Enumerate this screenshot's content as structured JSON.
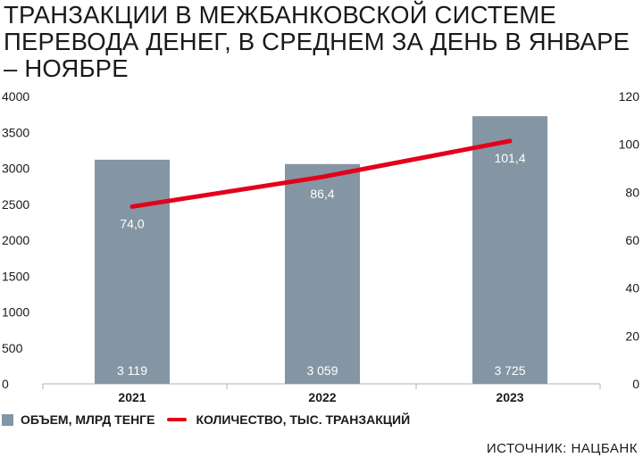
{
  "title_lines": [
    "ТРАНЗАКЦИИ В МЕЖБАНКОВСКОЙ СИСТЕМЕ",
    "ПЕРЕВОДА ДЕНЕГ, В СРЕДНЕМ ЗА ДЕНЬ В ЯНВАРЕ",
    "– НОЯБРЕ"
  ],
  "source": "ИСТОЧНИК: НАЦБАНК",
  "colors": {
    "bar": "#8496a4",
    "line": "#e3001b",
    "grid": "#b3b3b3"
  },
  "chart_data": {
    "type": "bar",
    "categories": [
      "2021",
      "2022",
      "2023"
    ],
    "series": [
      {
        "name": "ОБЪЕМ, МЛРД ТЕНГЕ",
        "type": "bar",
        "axis": "left",
        "values": [
          3119,
          3059,
          3725
        ],
        "labels": [
          "3 119",
          "3 059",
          "3 725"
        ]
      },
      {
        "name": "КОЛИЧЕСТВО, ТЫС. ТРАНЗАКЦИЙ",
        "type": "line",
        "axis": "right",
        "values": [
          74.0,
          86.4,
          101.4
        ],
        "labels": [
          "74,0",
          "86,4",
          "101,4"
        ]
      }
    ],
    "y_left": {
      "ylim": [
        0,
        4000
      ],
      "ticks": [
        "0",
        "500",
        "1000",
        "1500",
        "2000",
        "2500",
        "3000",
        "3500",
        "4000"
      ]
    },
    "y_right": {
      "ylim": [
        0,
        120
      ],
      "ticks": [
        "0",
        "20",
        "40",
        "60",
        "80",
        "100",
        "120"
      ]
    },
    "grid": false,
    "legend_position": "bottom-left"
  }
}
